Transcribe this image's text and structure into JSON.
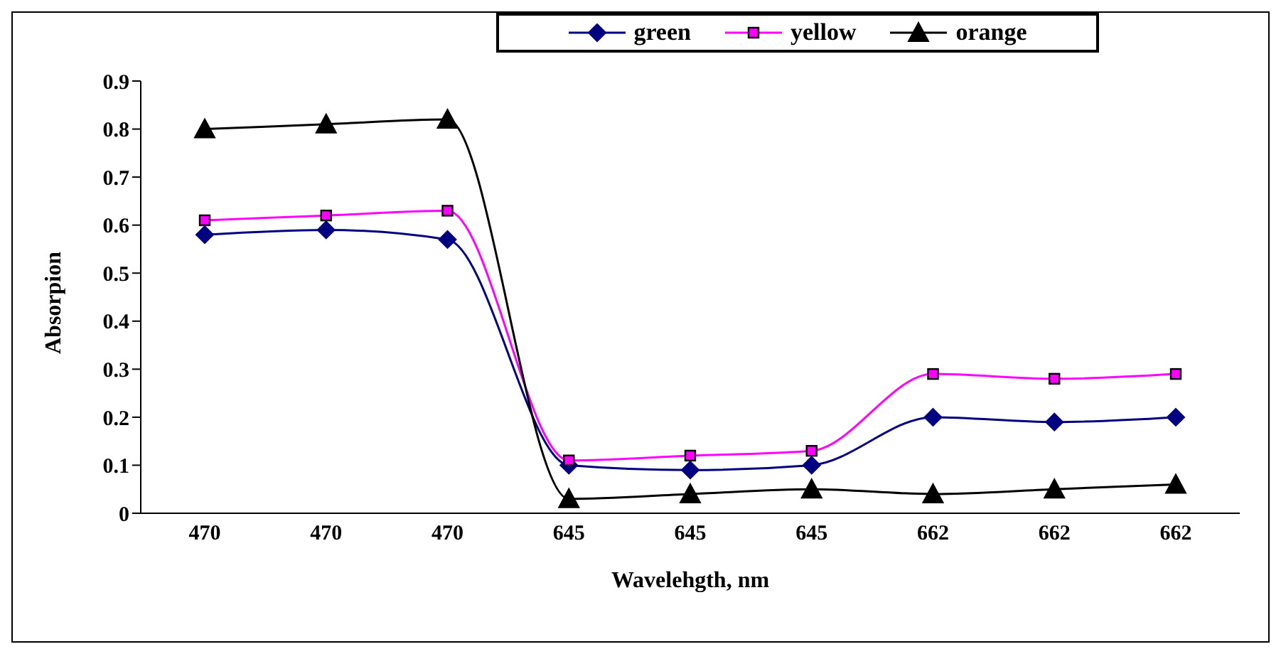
{
  "chart_data": {
    "type": "line",
    "xlabel": "Wavelehgth, nm",
    "ylabel": "Absorpion",
    "categories": [
      "470",
      "470",
      "470",
      "645",
      "645",
      "645",
      "662",
      "662",
      "662"
    ],
    "series": [
      {
        "name": "green",
        "color": "#000080",
        "marker": "diamond",
        "values": [
          0.58,
          0.59,
          0.57,
          0.1,
          0.09,
          0.1,
          0.2,
          0.19,
          0.2
        ]
      },
      {
        "name": "yellow",
        "color": "#ff00ff",
        "marker": "square",
        "values": [
          0.61,
          0.62,
          0.63,
          0.11,
          0.12,
          0.13,
          0.29,
          0.28,
          0.29
        ]
      },
      {
        "name": "orange",
        "color": "#000000",
        "marker": "triangle",
        "values": [
          0.8,
          0.81,
          0.82,
          0.03,
          0.04,
          0.05,
          0.04,
          0.05,
          0.06
        ]
      }
    ],
    "ylim": [
      0,
      0.9
    ],
    "yticks": [
      0,
      0.1,
      0.2,
      0.3,
      0.4,
      0.5,
      0.6,
      0.7,
      0.8,
      0.9
    ],
    "grid": false,
    "legend": "top"
  }
}
